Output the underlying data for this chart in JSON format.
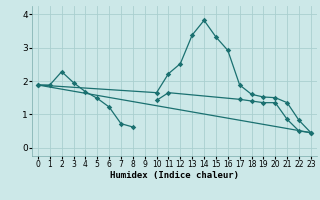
{
  "xlabel": "Humidex (Indice chaleur)",
  "xlim": [
    -0.5,
    23.5
  ],
  "ylim": [
    -0.25,
    4.25
  ],
  "xticks": [
    0,
    1,
    2,
    3,
    4,
    5,
    6,
    7,
    8,
    9,
    10,
    11,
    12,
    13,
    14,
    15,
    16,
    17,
    18,
    19,
    20,
    21,
    22,
    23
  ],
  "yticks": [
    0,
    1,
    2,
    3,
    4
  ],
  "bg_color": "#cce8e8",
  "grid_color": "#aacfcf",
  "line_color": "#1a7070",
  "line1_x": [
    0,
    1,
    2,
    3,
    4,
    5,
    6,
    7,
    8,
    9,
    10,
    11,
    17,
    18,
    19,
    20,
    21,
    22,
    23
  ],
  "line1_y": [
    1.88,
    1.88,
    2.28,
    1.95,
    1.68,
    1.48,
    1.22,
    0.72,
    0.62,
    null,
    1.42,
    1.65,
    1.45,
    1.4,
    1.35,
    1.35,
    0.85,
    0.5,
    0.45
  ],
  "line1_gaps": [
    9
  ],
  "line2_x": [
    0,
    23
  ],
  "line2_y": [
    1.88,
    0.45
  ],
  "line3_x": [
    0,
    10,
    11,
    12,
    13,
    14,
    15,
    16,
    17,
    18,
    19,
    20,
    21,
    22,
    23
  ],
  "line3_y": [
    1.88,
    1.65,
    2.22,
    2.52,
    3.38,
    3.82,
    3.32,
    2.92,
    1.88,
    1.6,
    1.52,
    1.5,
    1.35,
    0.82,
    0.45
  ]
}
